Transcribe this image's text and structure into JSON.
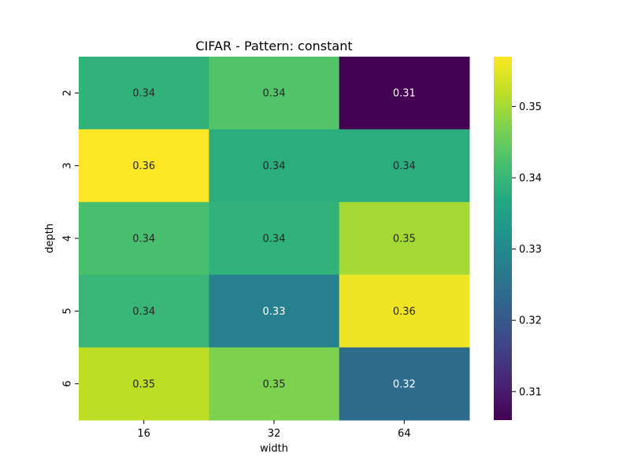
{
  "chart_data": {
    "type": "heatmap",
    "title": "CIFAR - Pattern: constant",
    "xlabel": "width",
    "ylabel": "depth",
    "x_categories": [
      "16",
      "32",
      "64"
    ],
    "y_categories": [
      "2",
      "3",
      "4",
      "5",
      "6"
    ],
    "values": [
      [
        0.339,
        0.343,
        0.306
      ],
      [
        0.357,
        0.338,
        0.338
      ],
      [
        0.342,
        0.339,
        0.35
      ],
      [
        0.34,
        0.328,
        0.356
      ],
      [
        0.352,
        0.347,
        0.324
      ]
    ],
    "annotations": [
      [
        "0.34",
        "0.34",
        "0.31"
      ],
      [
        "0.36",
        "0.34",
        "0.34"
      ],
      [
        "0.34",
        "0.34",
        "0.35"
      ],
      [
        "0.34",
        "0.33",
        "0.36"
      ],
      [
        "0.35",
        "0.35",
        "0.32"
      ]
    ],
    "colormap": "viridis",
    "vmin": 0.306,
    "vmax": 0.357,
    "colorbar": {
      "ticks": [
        0.31,
        0.32,
        0.33,
        0.34,
        0.35
      ],
      "tick_labels": [
        "0.31",
        "0.32",
        "0.33",
        "0.34",
        "0.35"
      ]
    }
  }
}
